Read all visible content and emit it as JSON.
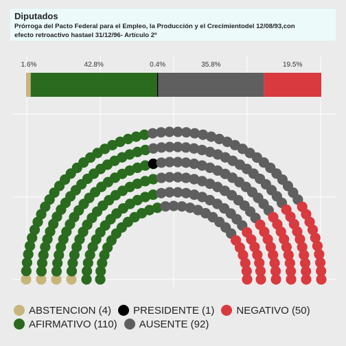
{
  "header": {
    "title": "Diputados",
    "subtitle_line1": "Prórroga del Pacto Federal para el Empleo, la Producción y el Crecimientodel 12/08/93,con",
    "subtitle_line2": "efecto retroactivo hastael 31/12/96- Artículo 2º"
  },
  "chart_data": {
    "type": "parliament",
    "grid": true,
    "groups": [
      {
        "name": "ABSTENCION",
        "count": 4,
        "pct_label": "1.6%",
        "color": "#c8b57a"
      },
      {
        "name": "AFIRMATIVO",
        "count": 110,
        "pct_label": "42.8%",
        "color": "#2a6b1f"
      },
      {
        "name": "PRESIDENTE",
        "count": 1,
        "pct_label": "0.4%",
        "color": "#000000"
      },
      {
        "name": "AUSENTE",
        "count": 92,
        "pct_label": "35.8%",
        "color": "#5f5f5f"
      },
      {
        "name": "NEGATIVO",
        "count": 50,
        "pct_label": "19.5%",
        "color": "#d93a3f"
      }
    ]
  },
  "legend": {
    "row1": [
      {
        "label": "ABSTENCION (4)",
        "color": "#c8b57a"
      },
      {
        "label": "PRESIDENTE (1)",
        "color": "#000000"
      },
      {
        "label": "NEGATIVO (50)",
        "color": "#d93a3f"
      }
    ],
    "row2": [
      {
        "label": "AFIRMATIVO (110)",
        "color": "#2a6b1f"
      },
      {
        "label": "AUSENTE (92)",
        "color": "#5f5f5f"
      }
    ]
  }
}
